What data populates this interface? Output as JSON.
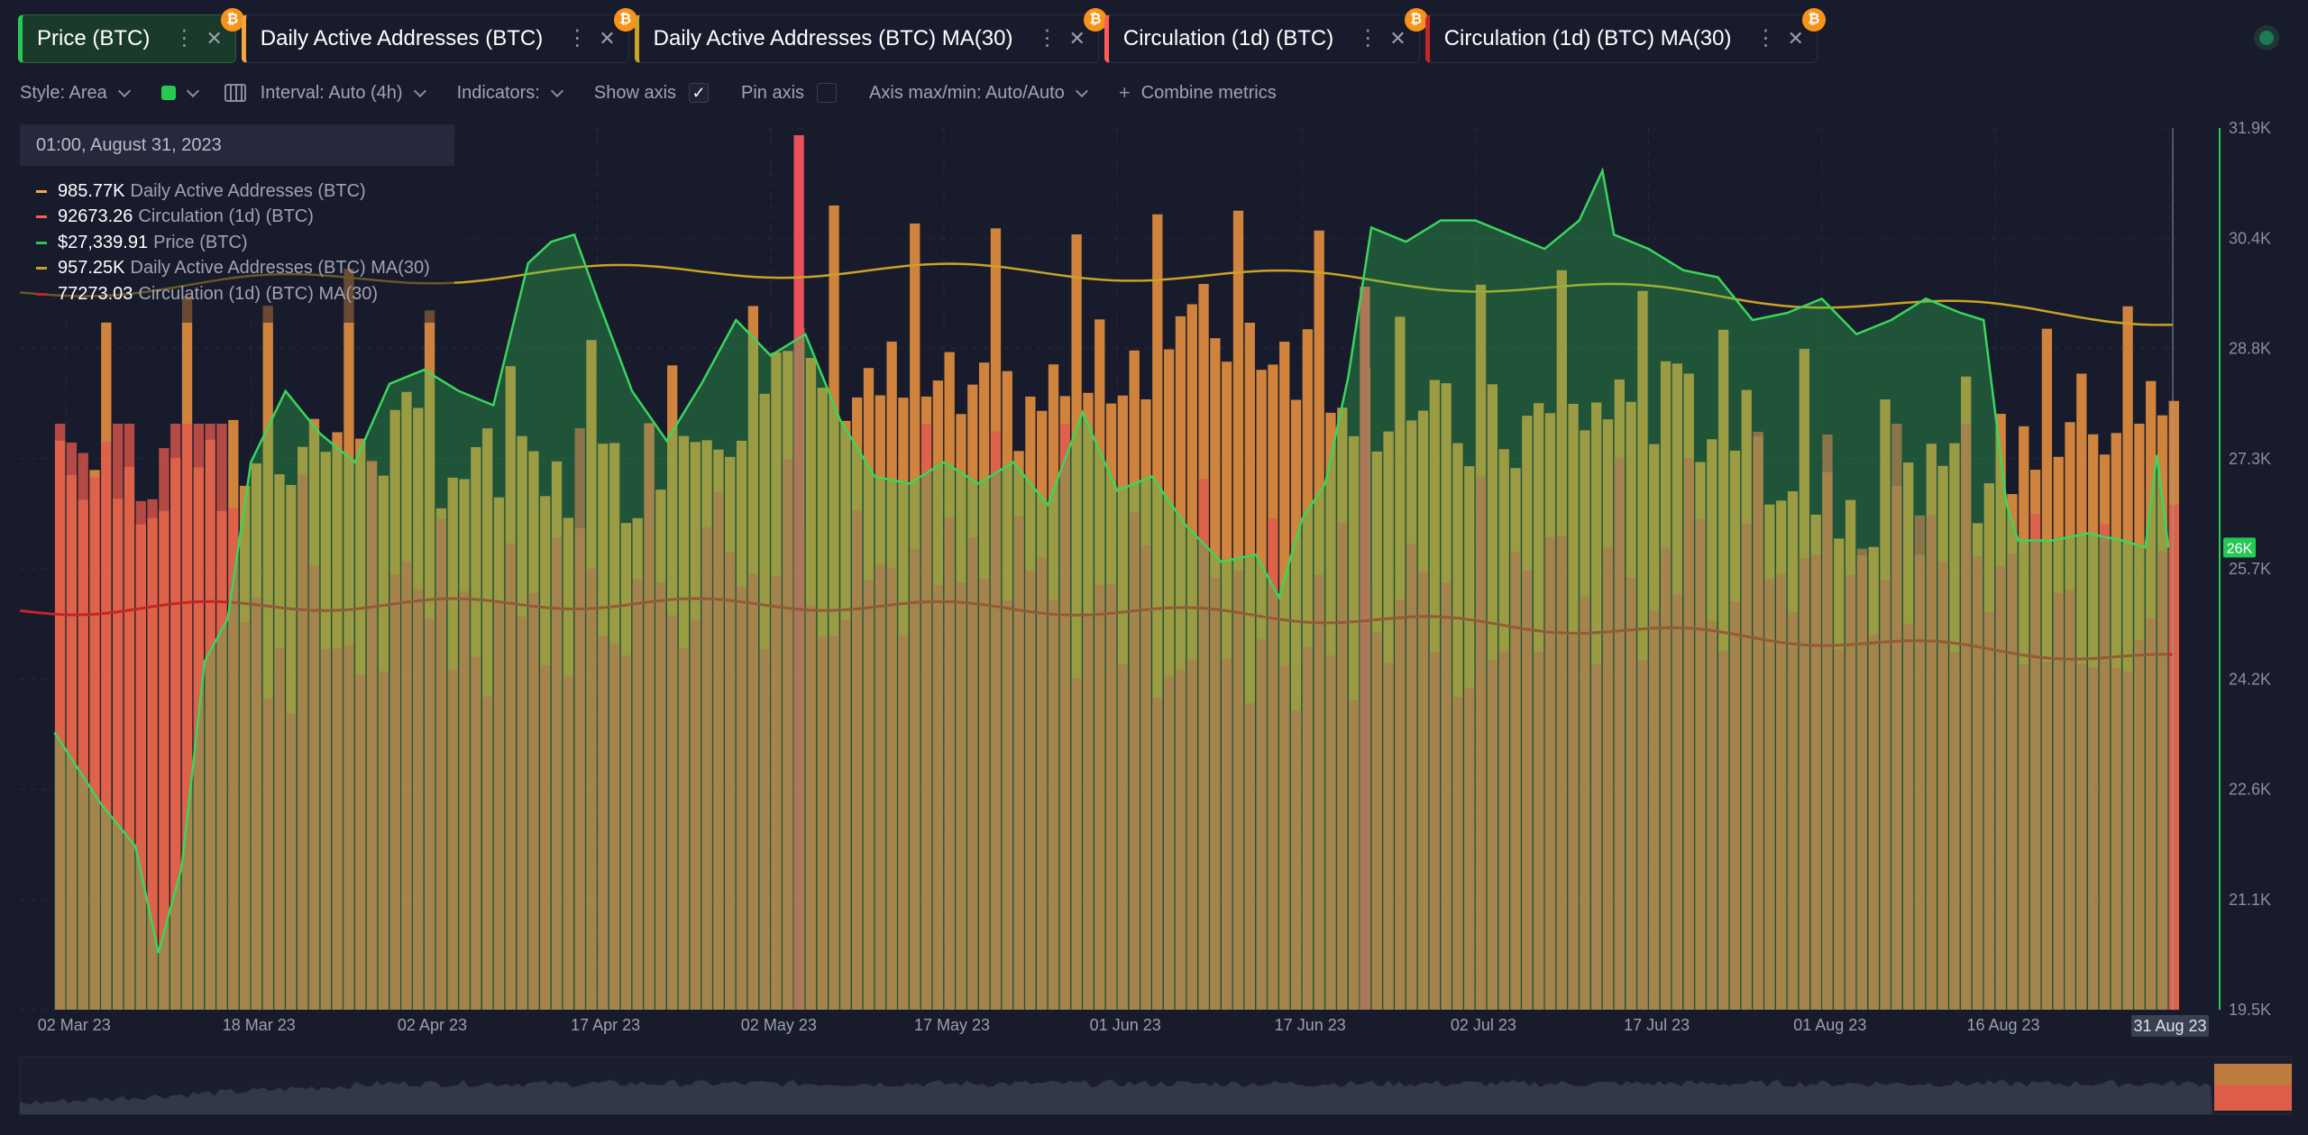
{
  "tabs": [
    {
      "label": "Price (BTC)",
      "color": "#26c953",
      "coin": "₿",
      "active": true
    },
    {
      "label": "Daily Active Addresses (BTC)",
      "color": "#f5a540",
      "coin": "₿",
      "active": false
    },
    {
      "label": "Daily Active Addresses (BTC) MA(30)",
      "color": "#c9a227",
      "coin": "₿",
      "active": false
    },
    {
      "label": "Circulation (1d) (BTC)",
      "color": "#ff5b5b",
      "coin": "₿",
      "active": false
    },
    {
      "label": "Circulation (1d) (BTC) MA(30)",
      "color": "#c0262a",
      "coin": "₿",
      "active": false
    }
  ],
  "toolbar": {
    "style": "Style: Area",
    "interval": "Interval: Auto (4h)",
    "indicators": "Indicators:",
    "show_axis": "Show axis",
    "pin_axis": "Pin axis",
    "axis_maxmin": "Axis max/min: Auto/Auto",
    "combine": "Combine metrics",
    "series_color": "#26c953"
  },
  "tooltip": {
    "date": "01:00, August 31, 2023",
    "rows": [
      {
        "value": "985.77K",
        "name": "Daily Active Addresses (BTC)",
        "color": "#f5a540"
      },
      {
        "value": "92673.26",
        "name": "Circulation (1d) (BTC)",
        "color": "#ff5b5b"
      },
      {
        "value": "$27,339.91",
        "name": "Price (BTC)",
        "color": "#26c953"
      },
      {
        "value": "957.25K",
        "name": "Daily Active Addresses (BTC) MA(30)",
        "color": "#c9a227"
      },
      {
        "value": "77273.03",
        "name": "Circulation (1d) (BTC) MA(30)",
        "color": "#c0262a"
      }
    ]
  },
  "chart_data": {
    "type": "area",
    "x_ticks": [
      "02 Mar 23",
      "18 Mar 23",
      "02 Apr 23",
      "17 Apr 23",
      "02 May 23",
      "17 May 23",
      "01 Jun 23",
      "17 Jun 23",
      "02 Jul 23",
      "17 Jul 23",
      "01 Aug 23",
      "16 Aug 23",
      "31 Aug 23"
    ],
    "cursor_label": "31 Aug 23",
    "price_axis": {
      "ticks": [
        "31.9K",
        "30.4K",
        "28.8K",
        "27.3K",
        "25.7K",
        "24.2K",
        "22.6K",
        "21.1K",
        "19.5K"
      ],
      "ylim": [
        19500,
        31900
      ],
      "current_label": "26K",
      "current_value": 26000
    },
    "grid": true,
    "series": [
      {
        "name": "Price (BTC)",
        "style": "area",
        "color": "#26c953",
        "x": [
          "2023-03-01",
          "2023-03-05",
          "2023-03-08",
          "2023-03-10",
          "2023-03-12",
          "2023-03-14",
          "2023-03-16",
          "2023-03-18",
          "2023-03-21",
          "2023-03-24",
          "2023-03-27",
          "2023-03-30",
          "2023-04-02",
          "2023-04-05",
          "2023-04-08",
          "2023-04-11",
          "2023-04-13",
          "2023-04-15",
          "2023-04-17",
          "2023-04-20",
          "2023-04-23",
          "2023-04-26",
          "2023-04-29",
          "2023-05-02",
          "2023-05-05",
          "2023-05-08",
          "2023-05-11",
          "2023-05-14",
          "2023-05-17",
          "2023-05-20",
          "2023-05-23",
          "2023-05-26",
          "2023-05-29",
          "2023-06-01",
          "2023-06-04",
          "2023-06-07",
          "2023-06-10",
          "2023-06-13",
          "2023-06-15",
          "2023-06-17",
          "2023-06-19",
          "2023-06-21",
          "2023-06-23",
          "2023-06-26",
          "2023-06-29",
          "2023-07-02",
          "2023-07-05",
          "2023-07-08",
          "2023-07-11",
          "2023-07-13",
          "2023-07-14",
          "2023-07-17",
          "2023-07-20",
          "2023-07-23",
          "2023-07-26",
          "2023-07-29",
          "2023-08-01",
          "2023-08-04",
          "2023-08-07",
          "2023-08-10",
          "2023-08-13",
          "2023-08-15",
          "2023-08-17",
          "2023-08-18",
          "2023-08-21",
          "2023-08-24",
          "2023-08-27",
          "2023-08-29",
          "2023-08-30",
          "2023-08-31"
        ],
        "y": [
          23400,
          22400,
          21800,
          20300,
          21500,
          24400,
          25000,
          27200,
          28200,
          27600,
          27200,
          28300,
          28500,
          28200,
          28000,
          30000,
          30300,
          30400,
          29500,
          28200,
          27500,
          28300,
          29200,
          28700,
          29000,
          27800,
          27000,
          26900,
          27200,
          26900,
          27200,
          26600,
          27900,
          26800,
          27000,
          26300,
          25800,
          25900,
          25300,
          26400,
          26900,
          28400,
          30500,
          30300,
          30600,
          30600,
          30400,
          30200,
          30600,
          31300,
          30400,
          30200,
          29900,
          29800,
          29200,
          29300,
          29500,
          29000,
          29200,
          29500,
          29300,
          29200,
          26600,
          26100,
          26100,
          26200,
          26100,
          26000,
          27300,
          26000
        ]
      },
      {
        "name": "Daily Active Addresses (BTC)",
        "style": "bar",
        "color": "#f5a540"
      },
      {
        "name": "Daily Active Addresses (BTC) MA(30)",
        "style": "line",
        "color": "#c9a227"
      },
      {
        "name": "Circulation (1d) (BTC)",
        "style": "bar",
        "color": "#ff5b5b"
      },
      {
        "name": "Circulation (1d) (BTC) MA(30)",
        "style": "line",
        "color": "#c0262a"
      }
    ]
  }
}
